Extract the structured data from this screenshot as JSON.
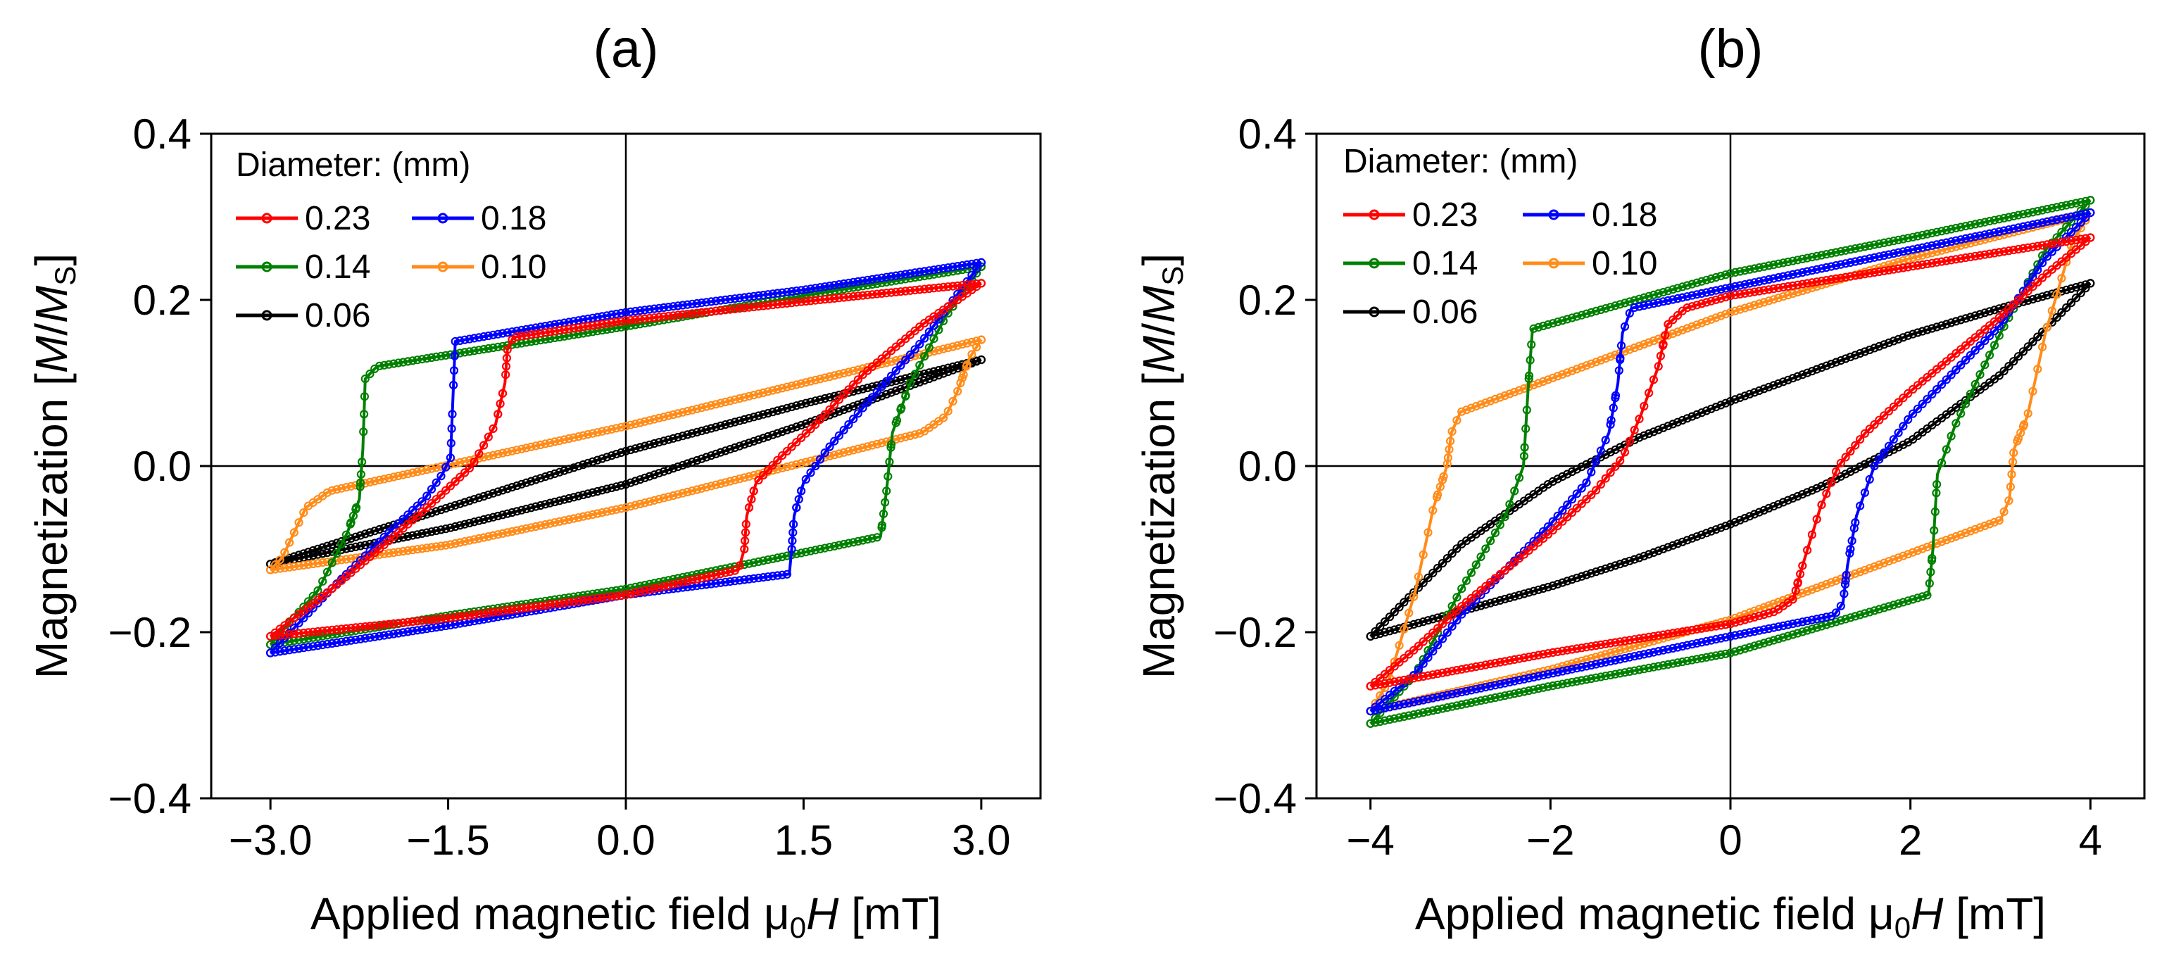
{
  "figure": {
    "panels": [
      {
        "label": "(a)"
      },
      {
        "label": "(b)"
      }
    ]
  },
  "chart_data": [
    {
      "type": "line",
      "panel_label": "(a)",
      "title": "",
      "xlabel": "Applied magnetic field μ₀H [mT]",
      "ylabel": "Magnetization [M/Ms]",
      "xlim": [
        -3.5,
        3.5
      ],
      "ylim": [
        -0.4,
        0.4
      ],
      "xticks": [
        -3.0,
        -1.5,
        0.0,
        1.5,
        3.0
      ],
      "xtick_labels": [
        "−3.0",
        "−1.5",
        "0.0",
        "1.5",
        "3.0"
      ],
      "yticks": [
        -0.4,
        -0.2,
        0.0,
        0.2,
        0.4
      ],
      "ytick_labels": [
        "−0.4",
        "−0.2",
        "0.0",
        "0.2",
        "0.4"
      ],
      "reference_lines": {
        "x": 0,
        "y": 0
      },
      "legend": {
        "title": "Diameter: (mm)",
        "position": "top-left",
        "columns": 2
      },
      "series": [
        {
          "name": "0.23",
          "color": "#ff0000",
          "Hmax": 3.0,
          "upper": {
            "x": [
              -3.0,
              -2.5,
              -2.0,
              -1.6,
              -1.3,
              -1.1,
              -1.02,
              -1.0,
              -0.95,
              0.0,
              1.5,
              3.0
            ],
            "y": [
              -0.205,
              -0.15,
              -0.09,
              -0.04,
              0.0,
              0.05,
              0.1,
              0.14,
              0.155,
              0.175,
              0.198,
              0.22
            ]
          },
          "lower": {
            "x": [
              3.0,
              2.5,
              2.0,
              1.6,
              1.3,
              1.1,
              1.02,
              1.0,
              0.95,
              0.0,
              -1.5,
              -3.0
            ],
            "y": [
              0.22,
              0.17,
              0.11,
              0.05,
              0.01,
              -0.02,
              -0.06,
              -0.1,
              -0.125,
              -0.155,
              -0.183,
              -0.205
            ]
          }
        },
        {
          "name": "0.18",
          "color": "#0000ff",
          "Hmax": 3.0,
          "upper": {
            "x": [
              -3.0,
              -2.5,
              -2.0,
              -1.7,
              -1.55,
              -1.48,
              -1.46,
              -1.44,
              0.0,
              1.5,
              3.0
            ],
            "y": [
              -0.225,
              -0.15,
              -0.08,
              -0.04,
              -0.01,
              0.01,
              0.08,
              0.15,
              0.185,
              0.212,
              0.245
            ]
          },
          "lower": {
            "x": [
              3.0,
              2.5,
              2.0,
              1.7,
              1.5,
              1.42,
              1.4,
              1.38,
              0.0,
              -1.5,
              -3.0
            ],
            "y": [
              0.245,
              0.15,
              0.07,
              0.02,
              -0.02,
              -0.06,
              -0.1,
              -0.13,
              -0.155,
              -0.192,
              -0.225
            ]
          }
        },
        {
          "name": "0.14",
          "color": "#008000",
          "Hmax": 3.0,
          "upper": {
            "x": [
              -3.0,
              -2.6,
              -2.35,
              -2.25,
              -2.22,
              -2.2,
              -2.1,
              0.0,
              1.5,
              3.0
            ],
            "y": [
              -0.215,
              -0.15,
              -0.08,
              -0.04,
              0.02,
              0.105,
              0.12,
              0.168,
              0.205,
              0.24
            ]
          },
          "lower": {
            "x": [
              3.0,
              2.7,
              2.4,
              2.25,
              2.2,
              2.15,
              0.0,
              -1.5,
              -3.0
            ],
            "y": [
              0.24,
              0.18,
              0.1,
              0.04,
              -0.03,
              -0.085,
              -0.148,
              -0.18,
              -0.215
            ]
          }
        },
        {
          "name": "0.10",
          "color": "#ff8c1a",
          "Hmax": 3.0,
          "upper": {
            "x": [
              -3.0,
              -2.9,
              -2.8,
              -2.7,
              -2.5,
              0.0,
              1.5,
              3.0
            ],
            "y": [
              -0.125,
              -0.11,
              -0.08,
              -0.05,
              -0.03,
              0.048,
              0.1,
              0.152
            ]
          },
          "lower": {
            "x": [
              3.0,
              2.9,
              2.8,
              2.7,
              2.5,
              0.0,
              -1.5,
              -3.0
            ],
            "y": [
              0.152,
              0.13,
              0.09,
              0.06,
              0.04,
              -0.05,
              -0.095,
              -0.125
            ]
          }
        },
        {
          "name": "0.06",
          "color": "#000000",
          "Hmax": 3.0,
          "upper": {
            "x": [
              -3.0,
              -1.5,
              0.0,
              1.5,
              3.0
            ],
            "y": [
              -0.118,
              -0.05,
              0.018,
              0.075,
              0.128
            ]
          },
          "lower": {
            "x": [
              3.0,
              1.5,
              0.0,
              -1.5,
              -3.0
            ],
            "y": [
              0.128,
              0.05,
              -0.022,
              -0.075,
              -0.118
            ]
          }
        }
      ]
    },
    {
      "type": "line",
      "panel_label": "(b)",
      "title": "",
      "xlabel": "Applied magnetic field μ₀H [mT]",
      "ylabel": "Magnetization [M/Ms]",
      "xlim": [
        -4.6,
        4.6
      ],
      "ylim": [
        -0.4,
        0.4
      ],
      "xticks": [
        -4,
        -2,
        0,
        2,
        4
      ],
      "xtick_labels": [
        "−4",
        "−2",
        "0",
        "2",
        "4"
      ],
      "yticks": [
        -0.4,
        -0.2,
        0.0,
        0.2,
        0.4
      ],
      "ytick_labels": [
        "−0.4",
        "−0.2",
        "0.0",
        "0.2",
        "0.4"
      ],
      "reference_lines": {
        "x": 0,
        "y": 0
      },
      "legend": {
        "title": "Diameter: (mm)",
        "position": "top-left",
        "columns": 2
      },
      "series": [
        {
          "name": "0.23",
          "color": "#ff0000",
          "Hmax": 4.0,
          "upper": {
            "x": [
              -4.0,
              -3.5,
              -3.0,
              -2.0,
              -1.5,
              -1.2,
              -1.0,
              -0.8,
              -0.7,
              -0.5,
              0.0,
              2.0,
              4.0
            ],
            "y": [
              -0.265,
              -0.22,
              -0.17,
              -0.08,
              -0.03,
              0.01,
              0.06,
              0.12,
              0.17,
              0.19,
              0.205,
              0.24,
              0.275
            ]
          },
          "lower": {
            "x": [
              4.0,
              3.5,
              3.0,
              2.0,
              1.5,
              1.2,
              1.0,
              0.8,
              0.7,
              0.5,
              0.0,
              -2.0,
              -4.0
            ],
            "y": [
              0.275,
              0.23,
              0.18,
              0.09,
              0.04,
              0.0,
              -0.05,
              -0.12,
              -0.16,
              -0.175,
              -0.19,
              -0.225,
              -0.265
            ]
          }
        },
        {
          "name": "0.18",
          "color": "#0000ff",
          "Hmax": 4.0,
          "upper": {
            "x": [
              -4.0,
              -3.5,
              -3.0,
              -2.0,
              -1.6,
              -1.35,
              -1.25,
              -1.2,
              -1.1,
              0.0,
              2.0,
              4.0
            ],
            "y": [
              -0.295,
              -0.25,
              -0.18,
              -0.07,
              -0.02,
              0.04,
              0.1,
              0.16,
              0.19,
              0.215,
              0.26,
              0.305
            ]
          },
          "lower": {
            "x": [
              4.0,
              3.5,
              3.0,
              2.0,
              1.6,
              1.4,
              1.3,
              1.25,
              1.15,
              0.0,
              -2.0,
              -4.0
            ],
            "y": [
              0.305,
              0.25,
              0.17,
              0.06,
              0.0,
              -0.06,
              -0.12,
              -0.165,
              -0.18,
              -0.205,
              -0.25,
              -0.295
            ]
          }
        },
        {
          "name": "0.14",
          "color": "#008000",
          "Hmax": 4.0,
          "upper": {
            "x": [
              -4.0,
              -3.5,
              -3.0,
              -2.5,
              -2.3,
              -2.25,
              -2.2,
              0.0,
              2.0,
              4.0
            ],
            "y": [
              -0.31,
              -0.25,
              -0.15,
              -0.06,
              0.0,
              0.09,
              0.165,
              0.232,
              0.275,
              0.32
            ]
          },
          "lower": {
            "x": [
              4.0,
              3.5,
              3.0,
              2.5,
              2.3,
              2.25,
              2.2,
              0.0,
              -2.0,
              -4.0
            ],
            "y": [
              0.32,
              0.26,
              0.16,
              0.05,
              -0.01,
              -0.1,
              -0.155,
              -0.225,
              -0.265,
              -0.31
            ]
          }
        },
        {
          "name": "0.10",
          "color": "#ff8c1a",
          "Hmax": 4.0,
          "upper": {
            "x": [
              -4.0,
              -3.8,
              -3.5,
              -3.3,
              -3.15,
              -3.1,
              -3.0,
              0.0,
              2.0,
              4.0
            ],
            "y": [
              -0.295,
              -0.26,
              -0.15,
              -0.05,
              0.0,
              0.04,
              0.065,
              0.185,
              0.25,
              0.305
            ]
          },
          "lower": {
            "x": [
              4.0,
              3.8,
              3.5,
              3.3,
              3.15,
              3.1,
              3.0,
              0.0,
              -2.0,
              -4.0
            ],
            "y": [
              0.305,
              0.27,
              0.16,
              0.06,
              0.02,
              -0.04,
              -0.065,
              -0.185,
              -0.245,
              -0.295
            ]
          }
        },
        {
          "name": "0.06",
          "color": "#000000",
          "Hmax": 4.0,
          "upper": {
            "x": [
              -4.0,
              -3.0,
              -2.0,
              -1.0,
              0.0,
              1.0,
              2.0,
              3.0,
              4.0
            ],
            "y": [
              -0.205,
              -0.095,
              -0.02,
              0.035,
              0.078,
              0.118,
              0.158,
              0.19,
              0.22
            ]
          },
          "lower": {
            "x": [
              4.0,
              3.0,
              2.0,
              1.0,
              0.0,
              -1.0,
              -2.0,
              -3.0,
              -4.0
            ],
            "y": [
              0.22,
              0.11,
              0.03,
              -0.025,
              -0.07,
              -0.11,
              -0.145,
              -0.175,
              -0.205
            ]
          }
        }
      ]
    }
  ]
}
